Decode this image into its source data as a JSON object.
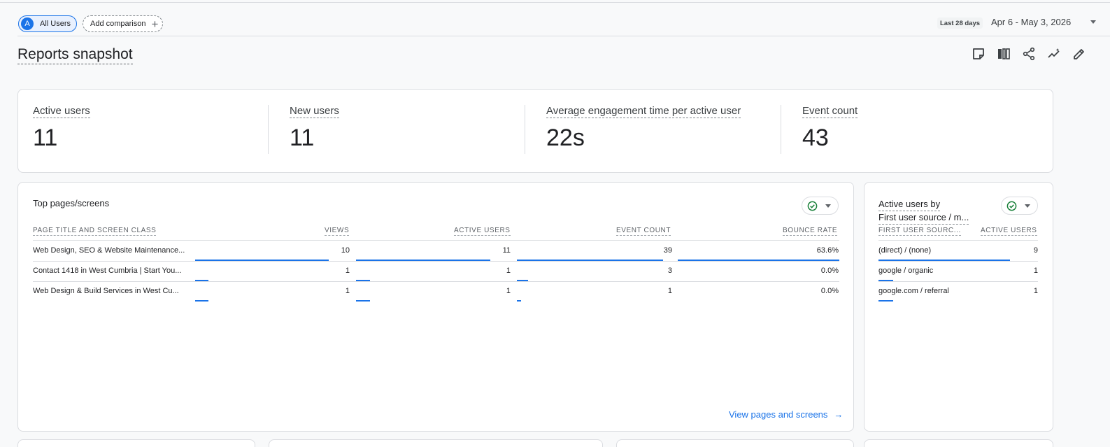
{
  "comparison": {
    "all_users_initial": "A",
    "all_users_label": "All Users",
    "add_comparison_label": "Add comparison",
    "add_icon": "+"
  },
  "date": {
    "badge": "Last 28 days",
    "range": "Apr 6 - May 3, 2026"
  },
  "page": {
    "title": "Reports snapshot"
  },
  "title_actions": [
    "customize-report-icon",
    "compare-icon",
    "share-icon",
    "insights-icon",
    "edit-icon"
  ],
  "scorecard": {
    "metrics": [
      {
        "label": "Active users",
        "value": "11"
      },
      {
        "label": "New users",
        "value": "11"
      },
      {
        "label": "Average engagement time per active user",
        "value": "22s"
      },
      {
        "label": "Event count",
        "value": "43"
      }
    ]
  },
  "top_pages": {
    "title": "Top pages/screens",
    "columns": [
      "PAGE TITLE AND SCREEN CLASS",
      "VIEWS",
      "ACTIVE USERS",
      "EVENT COUNT",
      "BOUNCE RATE"
    ],
    "rows": [
      {
        "page": "Web Design, SEO & Website Maintenance...",
        "views": "10",
        "active_users": "11",
        "event_count": "39",
        "bounce_rate": "63.6%"
      },
      {
        "page": "Contact 1418 in West Cumbria | Start You...",
        "views": "1",
        "active_users": "1",
        "event_count": "3",
        "bounce_rate": "0.0%"
      },
      {
        "page": "Web Design & Build Services in West Cu...",
        "views": "1",
        "active_users": "1",
        "event_count": "1",
        "bounce_rate": "0.0%"
      }
    ],
    "view_link": "View pages and screens",
    "view_link_arrow": "→"
  },
  "active_by_source": {
    "title_line1": "Active users by",
    "title_line2": "First user source / m...",
    "columns": [
      "FIRST USER SOURC...",
      "ACTIVE USERS"
    ],
    "rows": [
      {
        "source": "(direct) / (none)",
        "active_users": "9"
      },
      {
        "source": "google / organic",
        "active_users": "1"
      },
      {
        "source": "google.com / referral",
        "active_users": "1"
      }
    ]
  },
  "colors": {
    "accent": "#1a73e8",
    "ok": "#188038",
    "border": "#dadce0"
  }
}
